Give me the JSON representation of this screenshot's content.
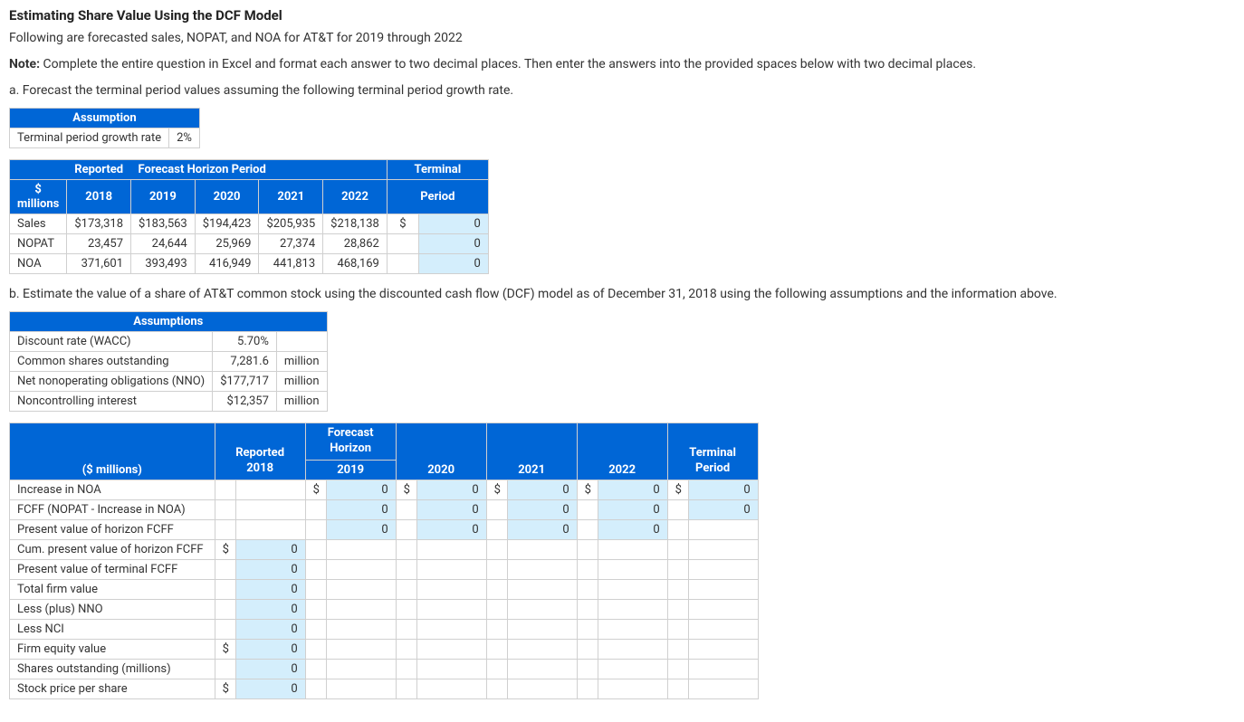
{
  "title": "Estimating Share Value Using the DCF Model",
  "intro": "Following are forecasted sales, NOPAT, and NOA for AT&T for 2019 through 2022",
  "note_label": "Note:",
  "note_text": " Complete the entire question in Excel and format each answer to two decimal places. Then enter the answers into the provided spaces below with two decimal places.",
  "part_a": "a. Forecast the terminal period values assuming the following terminal period growth rate.",
  "assumption1": {
    "header": "Assumption",
    "row_label": "Terminal period growth rate",
    "row_value": "2%"
  },
  "forecast": {
    "h_reported": "Reported",
    "h_forecast": "Forecast Horizon Period",
    "h_terminal": "Terminal",
    "sub_unit": "$ millions",
    "sub_2018": "2018",
    "sub_2019": "2019",
    "sub_2020": "2020",
    "sub_2021": "2021",
    "sub_2022": "2022",
    "sub_period": "Period",
    "rows": {
      "sales": {
        "label": "Sales",
        "v2018": "$173,318",
        "v2019": "$183,563",
        "v2020": "$194,423",
        "v2021": "$205,935",
        "v2022": "$218,138",
        "dollar": "$",
        "term": "0"
      },
      "nopat": {
        "label": "NOPAT",
        "v2018": "23,457",
        "v2019": "24,644",
        "v2020": "25,969",
        "v2021": "27,374",
        "v2022": "28,862",
        "dollar": "",
        "term": "0"
      },
      "noa": {
        "label": "NOA",
        "v2018": "371,601",
        "v2019": "393,493",
        "v2020": "416,949",
        "v2021": "441,813",
        "v2022": "468,169",
        "dollar": "",
        "term": "0"
      }
    }
  },
  "part_b": "b. Estimate the value of a share of AT&T common stock using the discounted cash flow (DCF) model as of December 31, 2018 using the following assumptions and the information above.",
  "assumption2": {
    "header": "Assumptions",
    "rows": {
      "wacc": {
        "label": "Discount rate (WACC)",
        "value": "5.70%",
        "unit": ""
      },
      "shares": {
        "label": "Common shares outstanding",
        "value": "7,281.6",
        "unit": "million"
      },
      "nno": {
        "label": "Net nonoperating obligations (NNO)",
        "value": "$177,717",
        "unit": "million"
      },
      "nci": {
        "label": "Noncontrolling interest",
        "value": "$12,357",
        "unit": "million"
      }
    }
  },
  "dcf": {
    "h_blank": "",
    "h_unit": "($ millions)",
    "h_reported": "Reported 2018",
    "h_forecast": "Forecast Horizon",
    "h_2019": "2019",
    "h_2020": "2020",
    "h_2021": "2021",
    "h_2022": "2022",
    "h_terminal": "Terminal Period",
    "rows": {
      "incnoa": {
        "label": "Increase in NOA"
      },
      "fcff": {
        "label": "FCFF (NOPAT - Increase in NOA)"
      },
      "pvh": {
        "label": "Present value of horizon FCFF"
      },
      "cumpv": {
        "label": "Cum. present value of horizon FCFF"
      },
      "pvt": {
        "label": "Present value of terminal FCFF"
      },
      "tfv": {
        "label": "Total firm value"
      },
      "lnno": {
        "label": "Less (plus) NNO"
      },
      "lnci": {
        "label": "Less NCI"
      },
      "feq": {
        "label": "Firm equity value"
      },
      "so": {
        "label": "Shares outstanding (millions)"
      },
      "sps": {
        "label": "Stock price per share"
      }
    },
    "dollar": "$",
    "zero": "0"
  }
}
